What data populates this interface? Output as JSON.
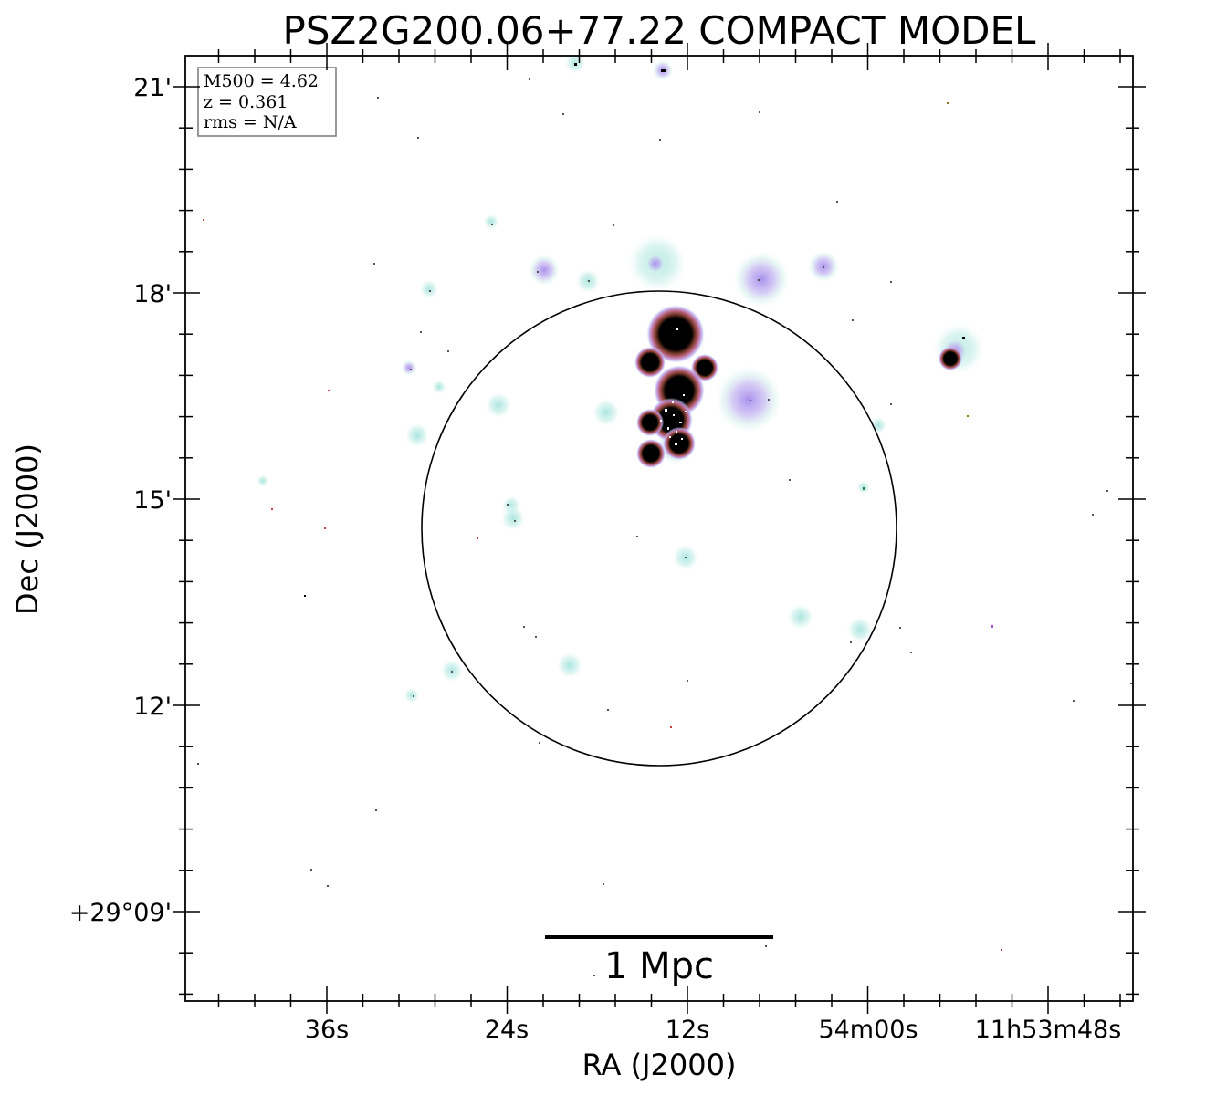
{
  "title": "PSZ2G200.06+77.22 COMPACT MODEL",
  "xlabel": "RA (J2000)",
  "ylabel": "Dec (J2000)",
  "info_box": {
    "m500": "M500 = 4.62",
    "z": "z = 0.361",
    "rms": "rms = N/A"
  },
  "scale_bar": {
    "label": "1 Mpc"
  },
  "x_ticks": [
    "36s",
    "24s",
    "12s",
    "54m00s",
    "11h53m48s"
  ],
  "y_ticks": [
    "21'",
    "18'",
    "15'",
    "12'",
    "+29°09'"
  ],
  "colors": {
    "frame": "#000000",
    "circle": "#000000",
    "cyan_glow": "#b8ece3",
    "violet_glow": "#b9a9f0",
    "core": "#000000"
  }
}
